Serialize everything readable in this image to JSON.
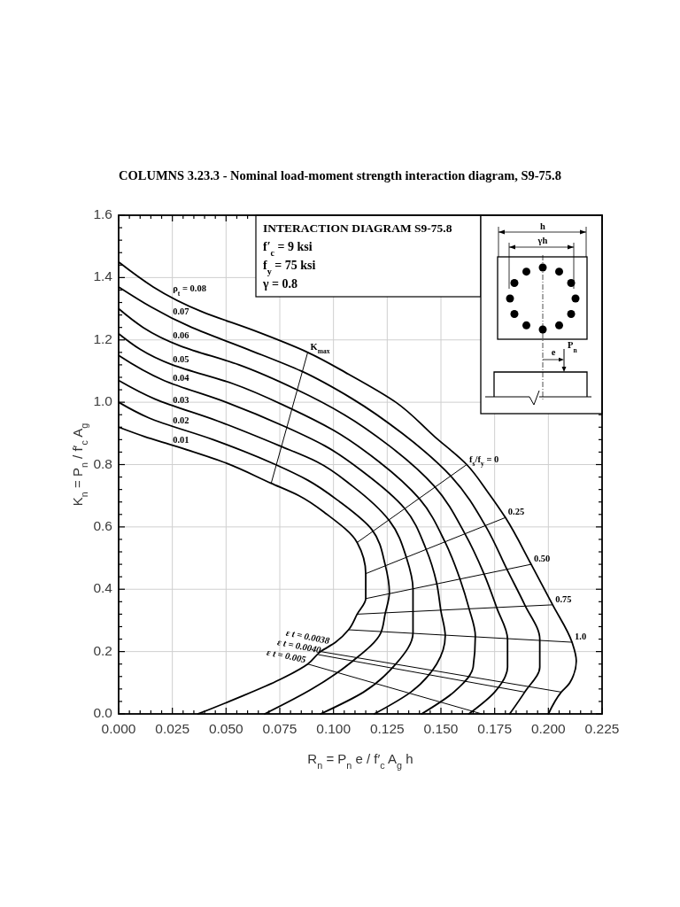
{
  "chart_data": {
    "type": "line",
    "title": "COLUMNS 3.23.3 - Nominal load-moment strength interaction diagram, S9-75.8",
    "xlabel": "R$_{n}$ = P$_{n}$ e / f′$_{c}$ A$_{g}$ h",
    "ylabel": "K$_{n}$ = P$_{n}$ / f′$_{c}$ A$_{g}$",
    "xlim": [
      0,
      0.225
    ],
    "ylim": [
      0,
      1.6
    ],
    "xticks": [
      {
        "value": 0,
        "label": "0.000"
      },
      {
        "value": 0.005,
        "label": null
      },
      {
        "value": 0.01,
        "label": null
      },
      {
        "value": 0.015,
        "label": null
      },
      {
        "value": 0.02,
        "label": null
      },
      {
        "value": 0.025,
        "label": "0.025"
      },
      {
        "value": 0.03,
        "label": null
      },
      {
        "value": 0.035,
        "label": null
      },
      {
        "value": 0.04,
        "label": null
      },
      {
        "value": 0.045,
        "label": null
      },
      {
        "value": 0.05,
        "label": "0.050"
      },
      {
        "value": 0.055,
        "label": null
      },
      {
        "value": 0.06,
        "label": null
      },
      {
        "value": 0.065,
        "label": null
      },
      {
        "value": 0.07,
        "label": null
      },
      {
        "value": 0.075,
        "label": "0.075"
      },
      {
        "value": 0.08,
        "label": null
      },
      {
        "value": 0.085,
        "label": null
      },
      {
        "value": 0.09,
        "label": null
      },
      {
        "value": 0.095,
        "label": null
      },
      {
        "value": 0.1,
        "label": "0.100"
      },
      {
        "value": 0.105,
        "label": null
      },
      {
        "value": 0.11,
        "label": null
      },
      {
        "value": 0.115,
        "label": null
      },
      {
        "value": 0.12,
        "label": null
      },
      {
        "value": 0.125,
        "label": "0.125"
      },
      {
        "value": 0.13,
        "label": null
      },
      {
        "value": 0.135,
        "label": null
      },
      {
        "value": 0.14,
        "label": null
      },
      {
        "value": 0.145,
        "label": null
      },
      {
        "value": 0.15,
        "label": "0.150"
      },
      {
        "value": 0.155,
        "label": null
      },
      {
        "value": 0.16,
        "label": null
      },
      {
        "value": 0.165,
        "label": null
      },
      {
        "value": 0.17,
        "label": null
      },
      {
        "value": 0.175,
        "label": "0.175"
      },
      {
        "value": 0.18,
        "label": null
      },
      {
        "value": 0.185,
        "label": null
      },
      {
        "value": 0.19,
        "label": null
      },
      {
        "value": 0.195,
        "label": null
      },
      {
        "value": 0.2,
        "label": "0.200"
      },
      {
        "value": 0.205,
        "label": null
      },
      {
        "value": 0.21,
        "label": null
      },
      {
        "value": 0.215,
        "label": null
      },
      {
        "value": 0.22,
        "label": null
      },
      {
        "value": 0.225,
        "label": "0.225"
      }
    ],
    "yticks": [
      {
        "value": 0,
        "label": "0.0"
      },
      {
        "value": 0.04,
        "label": null
      },
      {
        "value": 0.08,
        "label": null
      },
      {
        "value": 0.12,
        "label": null
      },
      {
        "value": 0.16,
        "label": null
      },
      {
        "value": 0.2,
        "label": "0.2"
      },
      {
        "value": 0.24,
        "label": null
      },
      {
        "value": 0.28,
        "label": null
      },
      {
        "value": 0.32,
        "label": null
      },
      {
        "value": 0.36,
        "label": null
      },
      {
        "value": 0.4,
        "label": "0.4"
      },
      {
        "value": 0.44,
        "label": null
      },
      {
        "value": 0.48,
        "label": null
      },
      {
        "value": 0.52,
        "label": null
      },
      {
        "value": 0.56,
        "label": null
      },
      {
        "value": 0.6,
        "label": "0.6"
      },
      {
        "value": 0.64,
        "label": null
      },
      {
        "value": 0.68,
        "label": null
      },
      {
        "value": 0.72,
        "label": null
      },
      {
        "value": 0.76,
        "label": null
      },
      {
        "value": 0.8,
        "label": "0.8"
      },
      {
        "value": 0.84,
        "label": null
      },
      {
        "value": 0.88,
        "label": null
      },
      {
        "value": 0.92,
        "label": null
      },
      {
        "value": 0.96,
        "label": null
      },
      {
        "value": 1,
        "label": "1.0"
      },
      {
        "value": 1.04,
        "label": null
      },
      {
        "value": 1.08,
        "label": null
      },
      {
        "value": 1.12,
        "label": null
      },
      {
        "value": 1.16,
        "label": null
      },
      {
        "value": 1.2,
        "label": "1.2"
      },
      {
        "value": 1.24,
        "label": null
      },
      {
        "value": 1.28,
        "label": null
      },
      {
        "value": 1.32,
        "label": null
      },
      {
        "value": 1.36,
        "label": null
      },
      {
        "value": 1.4,
        "label": "1.4"
      },
      {
        "value": 1.44,
        "label": null
      },
      {
        "value": 1.48,
        "label": null
      },
      {
        "value": 1.52,
        "label": null
      },
      {
        "value": 1.56,
        "label": null
      },
      {
        "value": 1.6,
        "label": "1.6"
      }
    ],
    "grid": true,
    "series": [
      {
        "name": "0.01",
        "color": "#000000",
        "x": [
          0,
          0.012,
          0.026,
          0.048,
          0.071,
          0.084,
          0.097,
          0.111,
          0.115,
          0.115,
          0.111,
          0.107,
          0.101,
          0.094,
          0.088,
          0.075,
          0.055,
          0.037
        ],
        "values": [
          0.92,
          0.89,
          0.86,
          0.81,
          0.74,
          0.7,
          0.64,
          0.55,
          0.45,
          0.37,
          0.32,
          0.27,
          0.23,
          0.2,
          0.16,
          0.11,
          0.05,
          0
        ]
      },
      {
        "name": "0.02",
        "color": "#000000",
        "x": [
          0,
          0.014,
          0.044,
          0.073,
          0.088,
          0.103,
          0.118,
          0.124,
          0.126,
          0.124,
          0.122,
          0.109,
          0.09,
          0.068
        ],
        "values": [
          1.0,
          0.95,
          0.88,
          0.8,
          0.75,
          0.68,
          0.59,
          0.48,
          0.39,
          0.32,
          0.26,
          0.17,
          0.08,
          0
        ]
      },
      {
        "name": "0.03",
        "color": "#000000",
        "x": [
          0,
          0.017,
          0.046,
          0.075,
          0.092,
          0.109,
          0.126,
          0.134,
          0.137,
          0.137,
          0.137,
          0.129,
          0.114,
          0.094
        ],
        "values": [
          1.07,
          1.01,
          0.94,
          0.86,
          0.81,
          0.73,
          0.62,
          0.5,
          0.4,
          0.33,
          0.26,
          0.16,
          0.07,
          0
        ]
      },
      {
        "name": "0.04",
        "color": "#000000",
        "x": [
          0,
          0.021,
          0.05,
          0.078,
          0.096,
          0.115,
          0.133,
          0.143,
          0.148,
          0.15,
          0.152,
          0.148,
          0.136,
          0.119
        ],
        "values": [
          1.15,
          1.07,
          1.0,
          0.92,
          0.86,
          0.77,
          0.66,
          0.53,
          0.42,
          0.33,
          0.25,
          0.16,
          0.07,
          0
        ]
      },
      {
        "name": "0.05",
        "color": "#000000",
        "x": [
          0,
          0.025,
          0.053,
          0.08,
          0.1,
          0.121,
          0.14,
          0.152,
          0.159,
          0.163,
          0.166,
          0.165,
          0.156,
          0.141
        ],
        "values": [
          1.22,
          1.12,
          1.06,
          0.98,
          0.91,
          0.81,
          0.69,
          0.55,
          0.43,
          0.34,
          0.25,
          0.15,
          0.07,
          0
        ]
      },
      {
        "name": "0.06",
        "color": "#000000",
        "x": [
          0,
          0.029,
          0.056,
          0.083,
          0.105,
          0.126,
          0.147,
          0.161,
          0.17,
          0.176,
          0.181,
          0.181,
          0.175,
          0.163
        ],
        "values": [
          1.3,
          1.18,
          1.12,
          1.04,
          0.96,
          0.86,
          0.73,
          0.58,
          0.45,
          0.34,
          0.24,
          0.15,
          0.07,
          0
        ]
      },
      {
        "name": "0.07",
        "color": "#000000",
        "x": [
          0,
          0.034,
          0.06,
          0.085,
          0.109,
          0.132,
          0.155,
          0.171,
          0.181,
          0.189,
          0.196,
          0.196,
          0.189,
          0.182
        ],
        "values": [
          1.37,
          1.24,
          1.17,
          1.1,
          1.01,
          0.9,
          0.76,
          0.6,
          0.46,
          0.35,
          0.24,
          0.15,
          0.07,
          0
        ]
      },
      {
        "name": "ρ$_{t}$ = 0.08",
        "color": "#000000",
        "x": [
          0,
          0.039,
          0.063,
          0.088,
          0.107,
          0.129,
          0.147,
          0.162,
          0.172,
          0.18,
          0.192,
          0.202,
          0.211,
          0.213,
          0.21,
          0.206,
          0.2
        ],
        "values": [
          1.45,
          1.29,
          1.23,
          1.16,
          1.09,
          1.0,
          0.89,
          0.8,
          0.71,
          0.63,
          0.48,
          0.35,
          0.23,
          0.17,
          0.1,
          0.07,
          0
        ]
      },
      {
        "name": "K$_{max}$",
        "color": "#000000",
        "x": [
          0.071,
          0.088
        ],
        "values": [
          0.74,
          1.16
        ]
      },
      {
        "name": "f$_{s}$/f$_{y}$ = 0",
        "color": "#000000",
        "x": [
          0.111,
          0.162
        ],
        "values": [
          0.55,
          0.8
        ]
      },
      {
        "name": "0.25",
        "color": "#000000",
        "x": [
          0.115,
          0.18
        ],
        "values": [
          0.45,
          0.63
        ]
      },
      {
        "name": "0.50",
        "color": "#000000",
        "x": [
          0.115,
          0.192
        ],
        "values": [
          0.37,
          0.48
        ]
      },
      {
        "name": "0.75",
        "color": "#000000",
        "x": [
          0.111,
          0.202
        ],
        "values": [
          0.32,
          0.35
        ]
      },
      {
        "name": "1.0",
        "color": "#000000",
        "x": [
          0.107,
          0.211
        ],
        "values": [
          0.27,
          0.23
        ]
      },
      {
        "color": "#000000",
        "x": [
          0.094,
          0.206
        ],
        "values": [
          0.2,
          0.07
        ]
      },
      {
        "color": "#000000",
        "x": [
          0.093,
          0.189
        ],
        "values": [
          0.19,
          0.07
        ]
      },
      {
        "color": "#000000",
        "x": [
          0.088,
          0.169
        ],
        "values": [
          0.16,
          0
        ]
      }
    ],
    "annotations": [
      "INTERACTION DIAGRAM S9-75.8",
      "f′$_{c}$ = 9 ksi",
      "f$_{y}$ = 75 ksi",
      "γ = 0.8",
      "h",
      "γh",
      "e",
      "P$_{n}$",
      {
        "text": "ε t = 0.0038",
        "x": 0.098,
        "y": 0.23
      },
      {
        "text": "ε t = 0.0040",
        "x": 0.094,
        "y": 0.2
      },
      {
        "text": "ε t = 0.005",
        "x": 0.087,
        "y": 0.17
      }
    ]
  }
}
